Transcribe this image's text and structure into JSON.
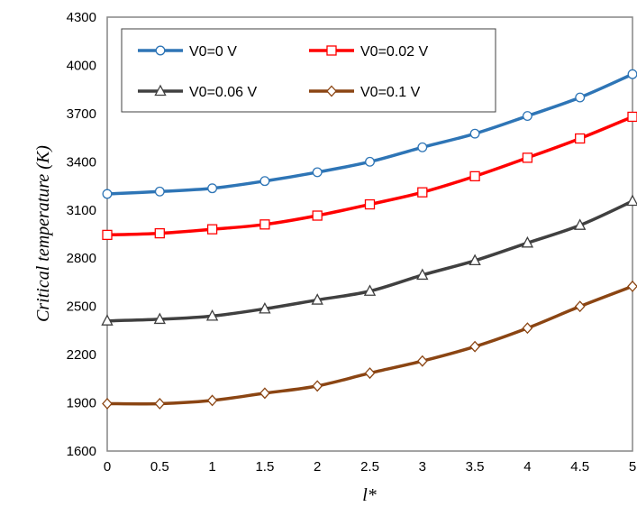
{
  "chart_data": {
    "type": "line",
    "title": "",
    "xlabel": "l*",
    "ylabel": "Critical temperature (K)",
    "x": [
      0,
      0.5,
      1,
      1.5,
      2,
      2.5,
      3,
      3.5,
      4,
      4.5,
      5
    ],
    "x_ticks": [
      "0",
      "0.5",
      "1",
      "1.5",
      "2",
      "2.5",
      "3",
      "3.5",
      "4",
      "4.5",
      "5"
    ],
    "y_ticks": [
      "1600",
      "1900",
      "2200",
      "2500",
      "2800",
      "3100",
      "3400",
      "3700",
      "4000",
      "4300"
    ],
    "xlim": [
      0,
      5
    ],
    "ylim": [
      1600,
      4300
    ],
    "grid": false,
    "legend_position": "top-left",
    "series": [
      {
        "name": "V0=0 V",
        "color": "#2e75b6",
        "marker": "circle",
        "values": [
          3200,
          3215,
          3235,
          3280,
          3335,
          3400,
          3490,
          3575,
          3685,
          3800,
          3945
        ]
      },
      {
        "name": "V0=0.02 V",
        "color": "#ff0000",
        "marker": "square",
        "values": [
          2945,
          2955,
          2980,
          3010,
          3065,
          3135,
          3210,
          3310,
          3425,
          3545,
          3680
        ]
      },
      {
        "name": "V0=0.06 V",
        "color": "#404040",
        "marker": "triangle",
        "values": [
          2410,
          2420,
          2440,
          2485,
          2540,
          2595,
          2695,
          2785,
          2895,
          3005,
          3155
        ]
      },
      {
        "name": "V0=0.1 V",
        "color": "#8b4513",
        "marker": "diamond",
        "values": [
          1895,
          1895,
          1915,
          1960,
          2005,
          2085,
          2160,
          2250,
          2365,
          2500,
          2625
        ]
      }
    ]
  }
}
